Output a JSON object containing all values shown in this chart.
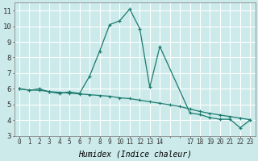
{
  "xlabel": "Humidex (Indice chaleur)",
  "background_color": "#cceaea",
  "grid_color": "#ffffff",
  "line_color": "#1a7a6e",
  "x_line1": [
    0,
    1,
    2,
    3,
    4,
    5,
    6,
    7,
    8,
    9,
    10,
    11,
    12,
    13,
    14,
    17,
    18,
    19,
    20,
    21,
    22,
    23
  ],
  "y_line1": [
    6.0,
    5.9,
    6.0,
    5.8,
    5.7,
    5.8,
    5.7,
    6.8,
    8.4,
    10.1,
    10.35,
    11.1,
    9.85,
    6.1,
    8.7,
    4.45,
    4.35,
    4.15,
    4.05,
    4.05,
    3.5,
    4.0
  ],
  "x_line2": [
    0,
    1,
    2,
    3,
    4,
    5,
    6,
    7,
    8,
    9,
    10,
    11,
    12,
    13,
    14,
    15,
    16,
    17,
    18,
    19,
    20,
    21,
    22,
    23
  ],
  "y_line2": [
    6.0,
    5.92,
    5.9,
    5.82,
    5.77,
    5.72,
    5.67,
    5.62,
    5.57,
    5.52,
    5.42,
    5.37,
    5.27,
    5.17,
    5.07,
    4.97,
    4.87,
    4.7,
    4.55,
    4.42,
    4.32,
    4.22,
    4.12,
    4.02
  ],
  "xlim": [
    -0.5,
    23.5
  ],
  "ylim": [
    3,
    11.5
  ],
  "yticks": [
    3,
    4,
    5,
    6,
    7,
    8,
    9,
    10,
    11
  ],
  "xtick_positions": [
    0,
    1,
    2,
    3,
    4,
    5,
    6,
    7,
    8,
    9,
    10,
    11,
    12,
    13,
    14,
    15,
    16,
    17,
    18,
    19,
    20,
    21,
    22,
    23
  ],
  "xtick_labels": [
    "0",
    "1",
    "2",
    "3",
    "4",
    "5",
    "6",
    "7",
    "8",
    "9",
    "10",
    "11",
    "12",
    "13",
    "14",
    "",
    "",
    "17",
    "18",
    "19",
    "20",
    "21",
    "22",
    "23"
  ]
}
